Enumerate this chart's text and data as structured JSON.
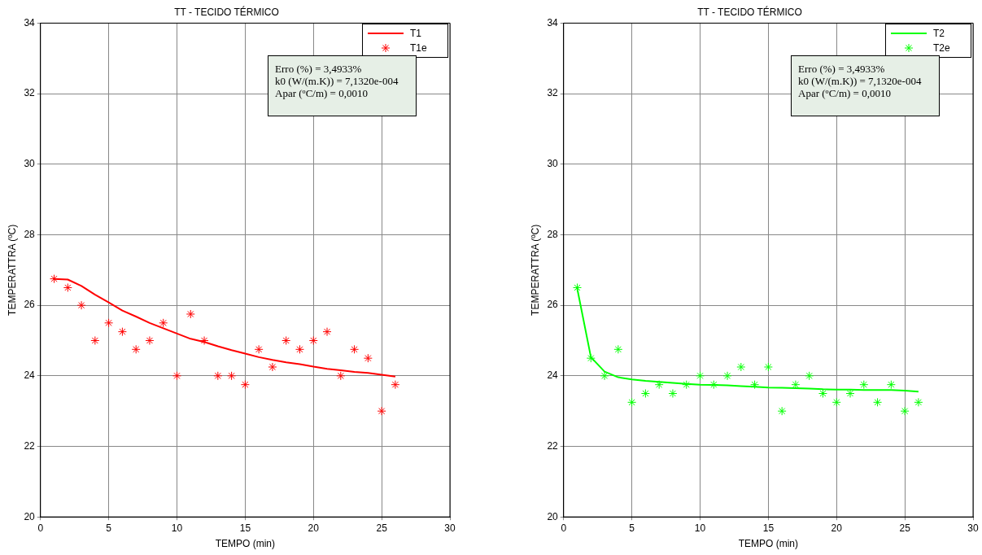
{
  "chart_data": [
    {
      "type": "line",
      "title": "TT - TECIDO TÉRMICO",
      "xlabel": "TEMPO (min)",
      "ylabel": "TEMPERATTRA (ºC)",
      "xlim": [
        0,
        30
      ],
      "xticks": [
        0,
        5,
        10,
        15,
        20,
        25,
        30
      ],
      "ylim": [
        20,
        34
      ],
      "yticks": [
        20,
        22,
        24,
        26,
        28,
        30,
        32,
        34
      ],
      "grid": true,
      "legend": "top right",
      "x": [
        1,
        2,
        3,
        4,
        5,
        6,
        7,
        8,
        9,
        10,
        11,
        12,
        13,
        14,
        15,
        16,
        17,
        18,
        19,
        20,
        21,
        22,
        23,
        24,
        25,
        26
      ],
      "series": [
        {
          "name": "T1",
          "type": "line",
          "marker": "none",
          "color": "#ff0000",
          "values": [
            26.75,
            26.73,
            26.55,
            26.3,
            26.08,
            25.85,
            25.68,
            25.5,
            25.35,
            25.2,
            25.05,
            24.96,
            24.84,
            24.73,
            24.63,
            24.53,
            24.45,
            24.38,
            24.33,
            24.26,
            24.2,
            24.16,
            24.11,
            24.08,
            24.03,
            23.98
          ]
        },
        {
          "name": "T1e",
          "type": "scatter",
          "marker": "cross",
          "color": "#ff0000",
          "values": [
            26.75,
            26.5,
            26,
            25,
            25.5,
            25.25,
            24.75,
            25,
            25.5,
            24,
            25.75,
            25,
            24,
            24,
            23.75,
            24.75,
            24.25,
            25,
            24.75,
            25,
            25.25,
            24,
            24.75,
            24.5,
            23,
            23.75
          ]
        }
      ],
      "annotations": [
        "Erro (%) = 3,4933%",
        "k0 (W/(m.K)) = 7,1320e-004",
        "Apar (ºC/m) = 0,0010"
      ]
    },
    {
      "type": "line",
      "title": "TT - TECIDO TÉRMICO",
      "xlabel": "TEMPO (min)",
      "ylabel": "TEMPERATTRA (ºC)",
      "xlim": [
        0,
        30
      ],
      "xticks": [
        0,
        5,
        10,
        15,
        20,
        25,
        30
      ],
      "ylim": [
        20,
        34
      ],
      "yticks": [
        20,
        22,
        24,
        26,
        28,
        30,
        32,
        34
      ],
      "grid": true,
      "legend": "top right",
      "x": [
        1,
        2,
        3,
        4,
        5,
        6,
        7,
        8,
        9,
        10,
        11,
        12,
        13,
        14,
        15,
        16,
        17,
        18,
        19,
        20,
        21,
        22,
        23,
        24,
        25,
        26
      ],
      "series": [
        {
          "name": "T2",
          "type": "line",
          "marker": "none",
          "color": "#00ff00",
          "values": [
            26.47,
            24.53,
            24.12,
            23.96,
            23.9,
            23.86,
            23.83,
            23.8,
            23.77,
            23.75,
            23.74,
            23.73,
            23.71,
            23.69,
            23.67,
            23.66,
            23.65,
            23.64,
            23.62,
            23.61,
            23.61,
            23.6,
            23.6,
            23.6,
            23.58,
            23.55
          ]
        },
        {
          "name": "T2e",
          "type": "scatter",
          "marker": "cross",
          "color": "#00ff00",
          "values": [
            26.5,
            24.5,
            24,
            24.75,
            23.25,
            23.5,
            23.75,
            23.5,
            23.75,
            24,
            23.75,
            24,
            24.25,
            23.75,
            24.25,
            23,
            23.75,
            24,
            23.5,
            23.25,
            23.5,
            23.75,
            23.25,
            23.75,
            23,
            23.25
          ]
        }
      ],
      "annotations": [
        "Erro (%) = 3,4933%",
        "k0 (W/(m.K)) = 7,1320e-004",
        "Apar (ºC/m) = 0,0010"
      ]
    }
  ]
}
